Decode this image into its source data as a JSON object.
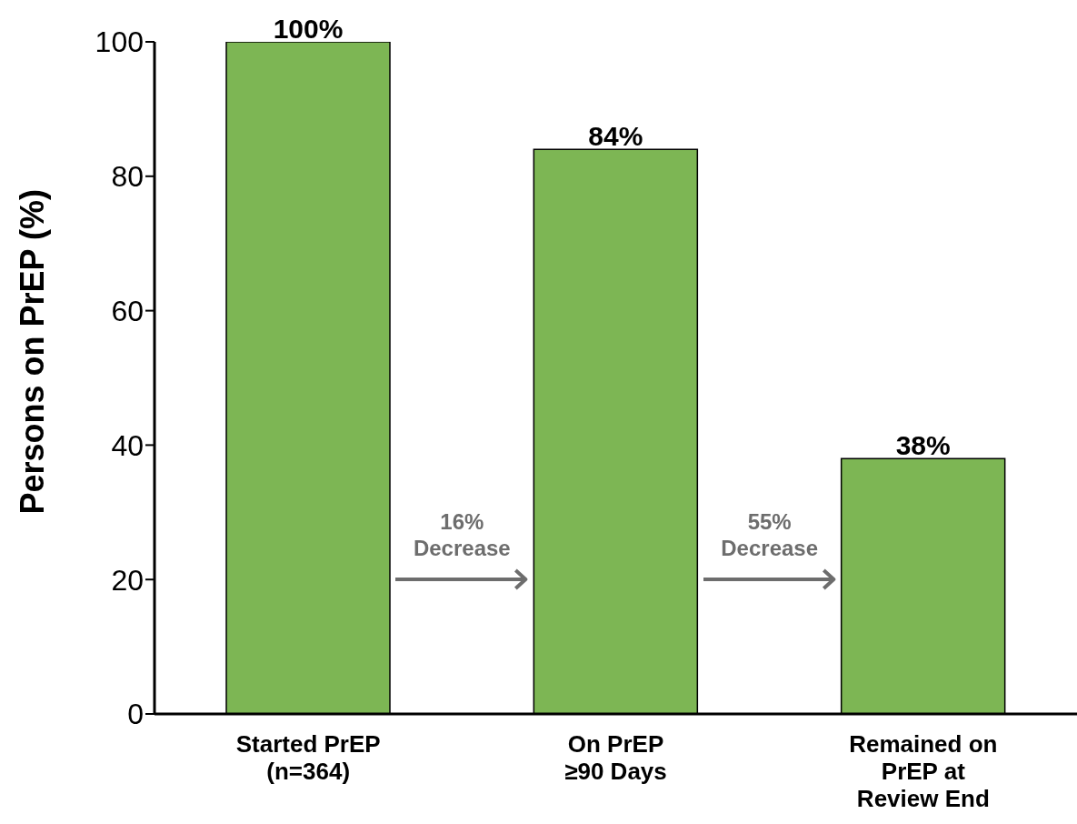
{
  "chart_data": {
    "type": "bar",
    "ylabel": "Persons on PrEP (%)",
    "categories": [
      "Started PrEP\n(n=364)",
      "On PrEP\n≥90 Days",
      "Remained on\nPrEP at\nReview End"
    ],
    "values": [
      100,
      84,
      38
    ],
    "color": "#7db654",
    "value_labels": [
      "100%",
      "84%",
      "38%"
    ],
    "ylim": [
      0,
      100
    ],
    "yticks": [
      0,
      20,
      40,
      60,
      80,
      100
    ],
    "grid": false,
    "annotations": [
      "16%\nDecrease",
      "55%\nDecrease"
    ]
  }
}
